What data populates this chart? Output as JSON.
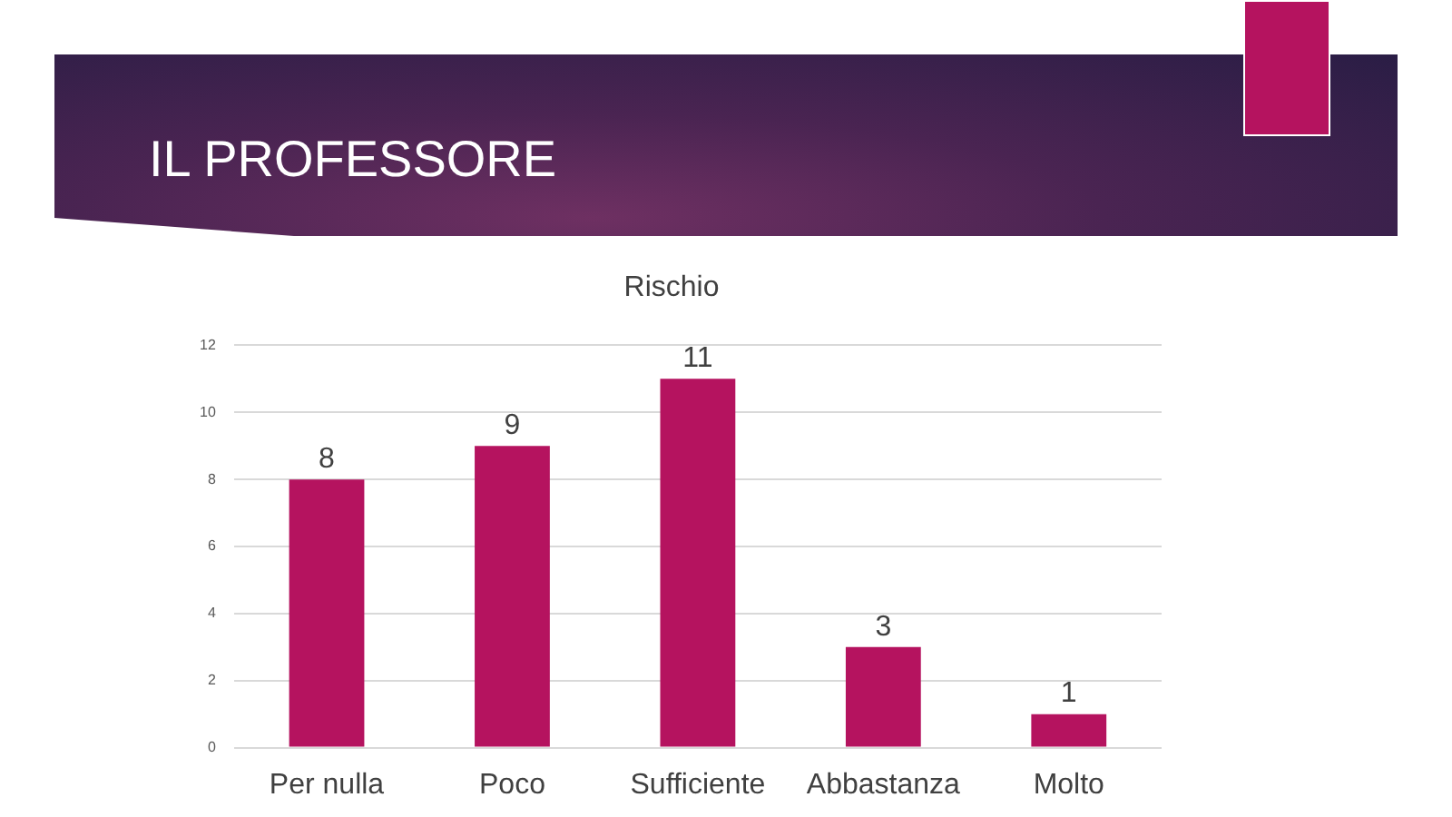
{
  "chart_data": {
    "type": "bar",
    "title": "IL PROFESSORE",
    "subtitle": "Rischio",
    "categories": [
      "Per nulla",
      "Poco",
      "Sufficiente",
      "Abbastanza",
      "Molto"
    ],
    "values": [
      8,
      9,
      11,
      3,
      1
    ],
    "color": "#b5135f",
    "ylim": [
      0,
      12
    ],
    "yticks": [
      0,
      2,
      4,
      6,
      8,
      10,
      12
    ],
    "grid": "y",
    "data_labels": true
  }
}
